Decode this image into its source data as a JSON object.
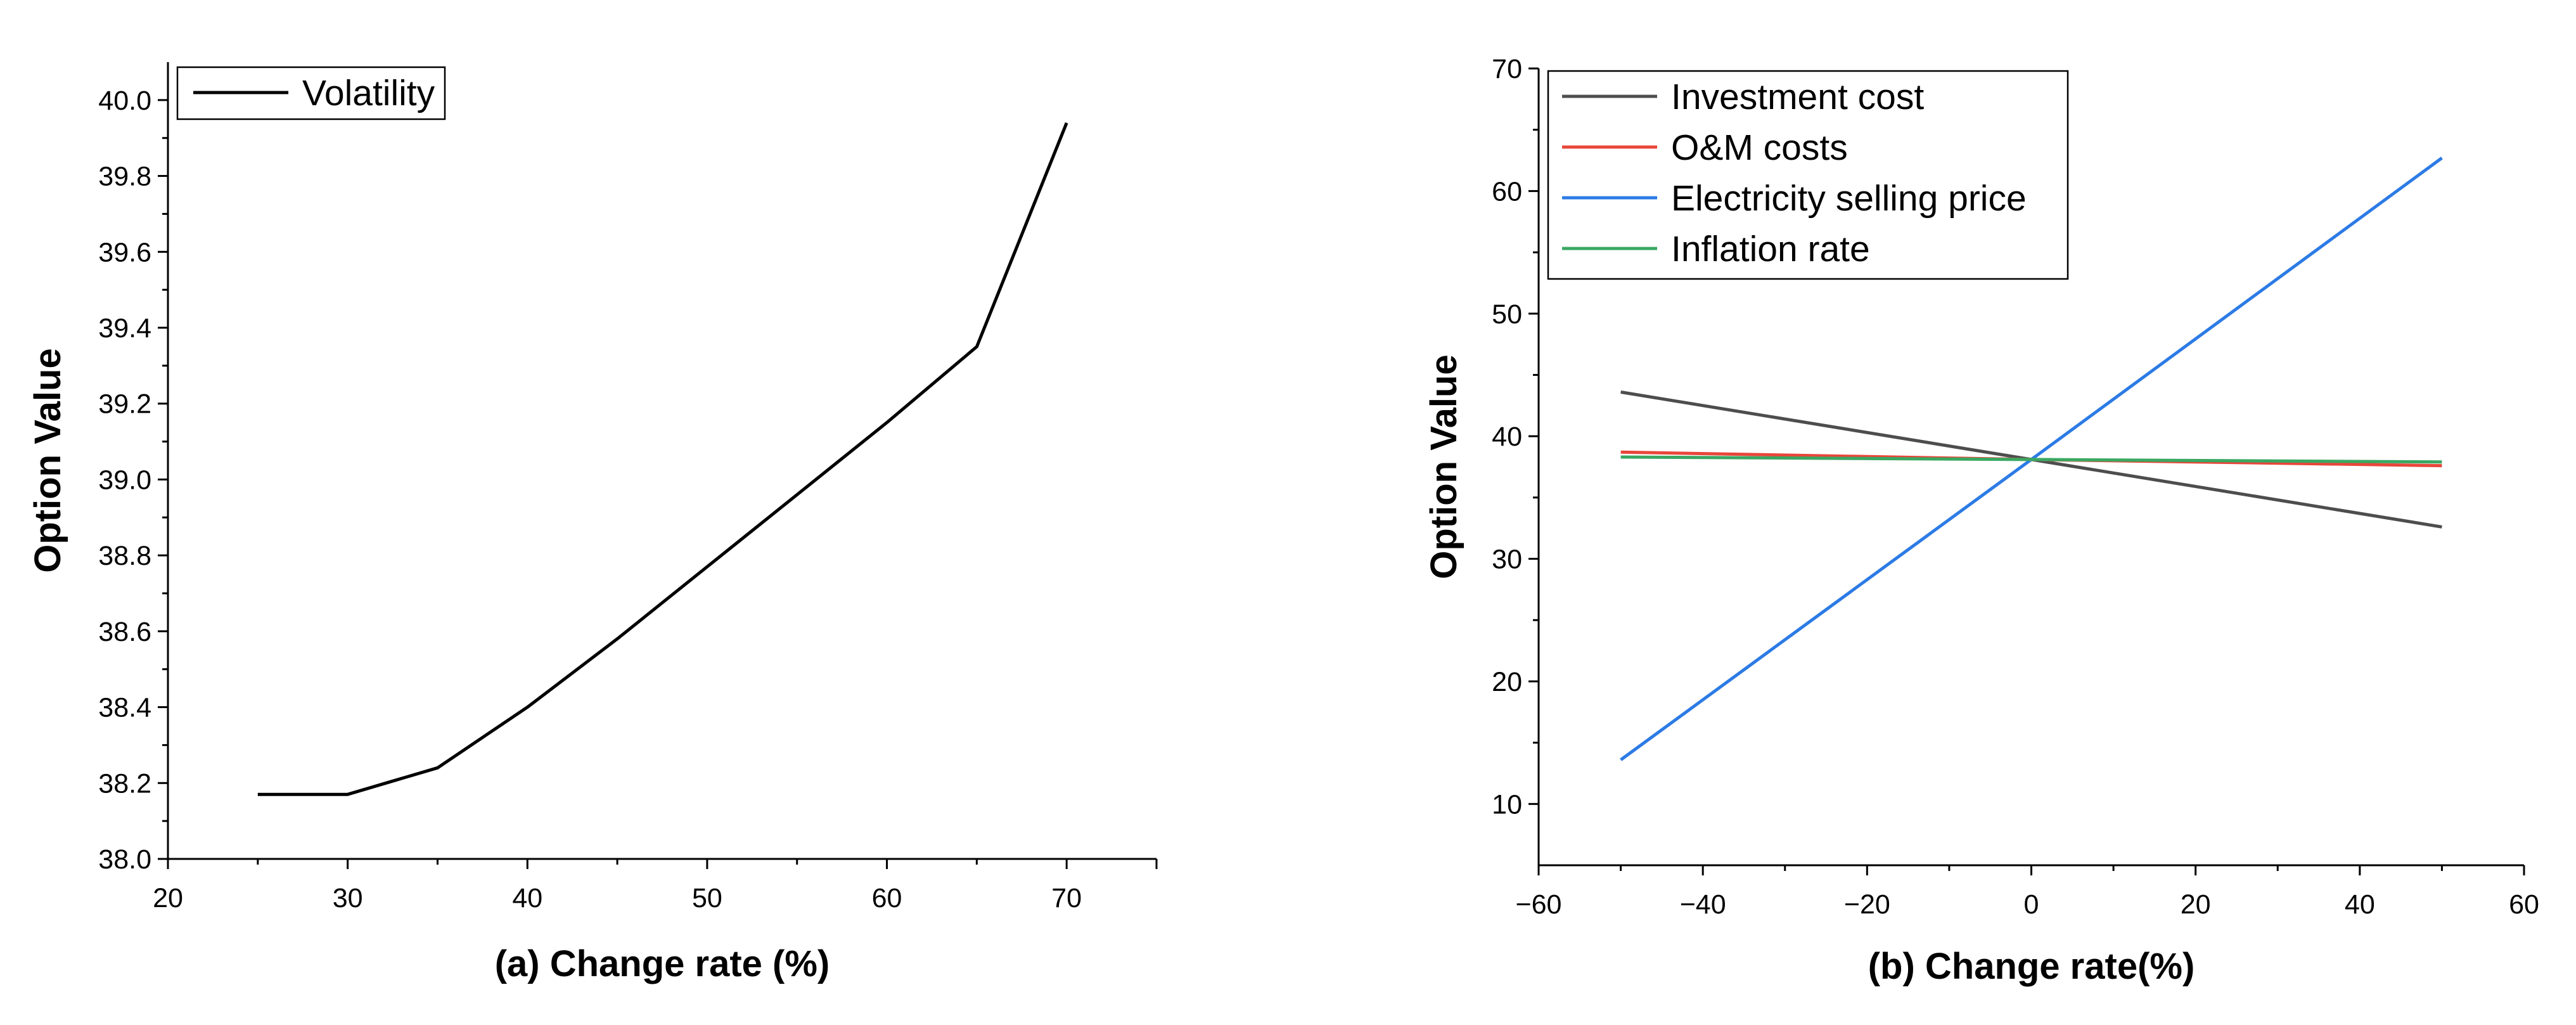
{
  "chart_data": [
    {
      "id": "a",
      "type": "line",
      "title": "",
      "xlabel": "(a) Change rate (%)",
      "ylabel": "Option Value",
      "xlim": [
        20,
        75
      ],
      "ylim": [
        38.0,
        40.1
      ],
      "xticks": [
        20,
        30,
        40,
        50,
        60,
        70
      ],
      "yticks": [
        38.0,
        38.2,
        38.4,
        38.6,
        38.8,
        39.0,
        39.2,
        39.4,
        39.6,
        39.8,
        40.0
      ],
      "xtick_labels": [
        "20",
        "30",
        "40",
        "50",
        "60",
        "70"
      ],
      "ytick_labels": [
        "38.0",
        "38.2",
        "38.4",
        "38.6",
        "38.8",
        "39.0",
        "39.2",
        "39.4",
        "39.6",
        "39.8",
        "40.0"
      ],
      "grid": false,
      "legend_position": "top-left",
      "series": [
        {
          "name": "Volatility",
          "color": "#000000",
          "x": [
            25,
            30,
            35,
            40,
            45,
            50,
            55,
            60,
            65,
            70
          ],
          "values": [
            38.17,
            38.17,
            38.24,
            38.4,
            38.58,
            38.77,
            38.96,
            39.15,
            39.35,
            39.94
          ]
        }
      ]
    },
    {
      "id": "b",
      "type": "line",
      "title": "",
      "xlabel": "(b) Change rate(%)",
      "ylabel": "Option Value",
      "xlim": [
        -60,
        60
      ],
      "ylim": [
        5,
        70
      ],
      "xticks": [
        -60,
        -40,
        -20,
        0,
        20,
        40,
        60
      ],
      "yticks": [
        10,
        20,
        30,
        40,
        50,
        60,
        70
      ],
      "xtick_labels": [
        "−60",
        "−40",
        "−20",
        "0",
        "20",
        "40",
        "60"
      ],
      "ytick_labels": [
        "10",
        "20",
        "30",
        "40",
        "50",
        "60",
        "70"
      ],
      "grid": false,
      "legend_position": "top-left",
      "series": [
        {
          "name": "Investment cost",
          "color": "#4d4d4d",
          "x": [
            -50,
            0,
            50
          ],
          "values": [
            43.6,
            38.1,
            32.6
          ]
        },
        {
          "name": "O&M costs",
          "color": "#e8463a",
          "x": [
            -50,
            0,
            50
          ],
          "values": [
            38.7,
            38.1,
            37.6
          ]
        },
        {
          "name": "Electricity selling price",
          "color": "#2c7be5",
          "x": [
            -50,
            0,
            50
          ],
          "values": [
            13.6,
            38.1,
            62.7
          ]
        },
        {
          "name": "Inflation rate",
          "color": "#3aa862",
          "x": [
            -50,
            0,
            50
          ],
          "values": [
            38.3,
            38.1,
            37.9
          ]
        }
      ]
    }
  ]
}
